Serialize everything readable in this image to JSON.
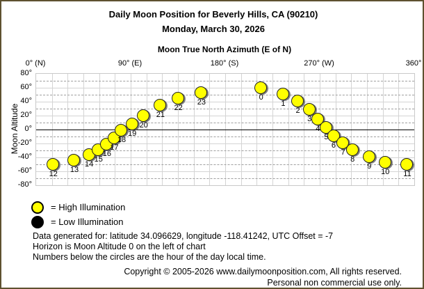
{
  "window": {
    "background": "#ffffff",
    "border_color": "#5E5130"
  },
  "header": {
    "title": "Daily Moon Position for Beverly Hills, CA (90210)",
    "date": "Monday, March 30, 2026"
  },
  "chart_data": {
    "type": "scatter",
    "title": "Moon True North Azimuth (E of N)",
    "ylabel": "Moon Altitude",
    "xlim": [
      0,
      360
    ],
    "ylim": [
      -80,
      80
    ],
    "grid": {
      "vertical_step_deg": 15,
      "horizontal_step_deg": 10,
      "zero_line": "solid-black"
    },
    "x_ticks": [
      {
        "az": 0,
        "label": "0° (N)"
      },
      {
        "az": 90,
        "label": "90° (E)"
      },
      {
        "az": 180,
        "label": "180° (S)"
      },
      {
        "az": 270,
        "label": "270° (W)"
      },
      {
        "az": 360,
        "label": "360°"
      }
    ],
    "y_ticks": [
      {
        "alt": 80,
        "label": "80°"
      },
      {
        "alt": 60,
        "label": "60°"
      },
      {
        "alt": 40,
        "label": "40°"
      },
      {
        "alt": 20,
        "label": "20°"
      },
      {
        "alt": 0,
        "label": "0°"
      },
      {
        "alt": -20,
        "label": "-20°"
      },
      {
        "alt": -40,
        "label": "-40°"
      },
      {
        "alt": -60,
        "label": "-60°"
      },
      {
        "alt": -80,
        "label": "-80°"
      }
    ],
    "point_colors": {
      "high": "#FFFF00",
      "low": "#000000"
    },
    "points": [
      {
        "hour": 0,
        "az": 214,
        "alt": 60,
        "illumination": "high"
      },
      {
        "hour": 1,
        "az": 235,
        "alt": 51,
        "illumination": "high"
      },
      {
        "hour": 2,
        "az": 249,
        "alt": 41,
        "illumination": "high"
      },
      {
        "hour": 3,
        "az": 260,
        "alt": 29,
        "illumination": "high"
      },
      {
        "hour": 4,
        "az": 268,
        "alt": 15,
        "illumination": "high"
      },
      {
        "hour": 5,
        "az": 276,
        "alt": 3,
        "illumination": "high"
      },
      {
        "hour": 6,
        "az": 283,
        "alt": -9,
        "illumination": "high"
      },
      {
        "hour": 7,
        "az": 292,
        "alt": -19,
        "illumination": "high"
      },
      {
        "hour": 8,
        "az": 301,
        "alt": -29,
        "illumination": "high"
      },
      {
        "hour": 9,
        "az": 317,
        "alt": -39,
        "illumination": "high"
      },
      {
        "hour": 10,
        "az": 332,
        "alt": -47,
        "illumination": "high"
      },
      {
        "hour": 11,
        "az": 353,
        "alt": -50,
        "illumination": "high"
      },
      {
        "hour": 12,
        "az": 16,
        "alt": -50,
        "illumination": "high"
      },
      {
        "hour": 13,
        "az": 36,
        "alt": -44,
        "illumination": "high"
      },
      {
        "hour": 14,
        "az": 50,
        "alt": -36,
        "illumination": "high"
      },
      {
        "hour": 15,
        "az": 59,
        "alt": -29,
        "illumination": "high"
      },
      {
        "hour": 16,
        "az": 67,
        "alt": -21,
        "illumination": "high"
      },
      {
        "hour": 17,
        "az": 74,
        "alt": -12,
        "illumination": "high"
      },
      {
        "hour": 18,
        "az": 81,
        "alt": -1,
        "illumination": "high"
      },
      {
        "hour": 19,
        "az": 91,
        "alt": 8,
        "illumination": "high"
      },
      {
        "hour": 20,
        "az": 102,
        "alt": 20,
        "illumination": "high"
      },
      {
        "hour": 21,
        "az": 118,
        "alt": 35,
        "illumination": "high"
      },
      {
        "hour": 22,
        "az": 135,
        "alt": 45,
        "illumination": "high"
      },
      {
        "hour": 23,
        "az": 157,
        "alt": 53,
        "illumination": "high"
      }
    ]
  },
  "legend": {
    "high": {
      "label": "= High Illumination",
      "color": "#FFFF00"
    },
    "low": {
      "label": "= Low Illumination",
      "color": "#000000"
    }
  },
  "notes": [
    "Data generated for: latitude 34.096629, longitude -118.41242, UTC Offset = -7",
    "Horizon is Moon Altitude 0 on the left of chart",
    "Numbers below the circles are the hour of the day local time."
  ],
  "footer": {
    "line1": "Copyright © 2005-2026 www.dailymoonposition.com, All rights reserved.",
    "line2": "Personal non commercial use only."
  }
}
